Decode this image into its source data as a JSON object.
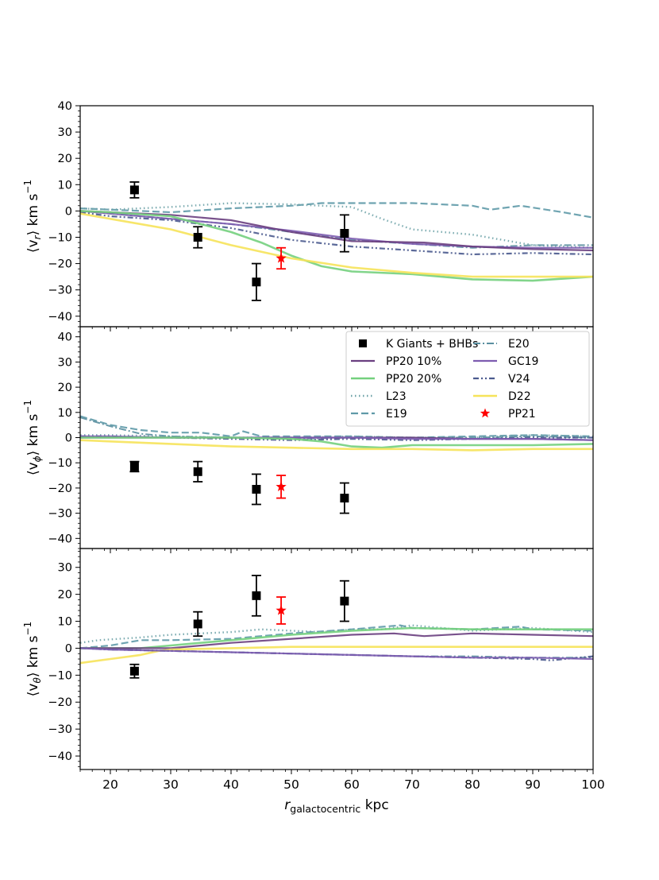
{
  "chart_data": {
    "type": "line",
    "xlabel": "r",
    "xlabel_sub": "galactocentric",
    "xlabel_unit": "kpc",
    "xlim": [
      15,
      100
    ],
    "x_ticks": [
      20,
      30,
      40,
      50,
      60,
      70,
      80,
      90,
      100
    ],
    "series_styles": {
      "PP20 10%": {
        "color": "#6a3f80",
        "dash": "",
        "width": 2.2
      },
      "PP20 20%": {
        "color": "#74d07e",
        "dash": "",
        "width": 2.6
      },
      "L23": {
        "color": "#6fa3a8",
        "dash": "1.5 3.5",
        "width": 2.4
      },
      "E19": {
        "color": "#5f9aa8",
        "dash": "9 4",
        "width": 2.2
      },
      "E20": {
        "color": "#5a8fa0",
        "dash": "9 3 2 3",
        "width": 2.0
      },
      "GC19": {
        "color": "#7d5cb0",
        "dash": "",
        "width": 2.2
      },
      "V24": {
        "color": "#4a5a8e",
        "dash": "7 3 2 3 2 3",
        "width": 2.2
      },
      "D22": {
        "color": "#f6e35a",
        "dash": "",
        "width": 2.6
      }
    },
    "legend": {
      "entries": [
        {
          "label": "K Giants + BHBs",
          "kind": "square",
          "color": "#000000"
        },
        {
          "label": "E20",
          "kind": "line",
          "series": "E20"
        },
        {
          "label": "PP20 10%",
          "kind": "line",
          "series": "PP20 10%"
        },
        {
          "label": "GC19",
          "kind": "line",
          "series": "GC19"
        },
        {
          "label": "PP20 20%",
          "kind": "line",
          "series": "PP20 20%"
        },
        {
          "label": "V24",
          "kind": "line",
          "series": "V24"
        },
        {
          "label": "L23",
          "kind": "line",
          "series": "L23"
        },
        {
          "label": "D22",
          "kind": "line",
          "series": "D22"
        },
        {
          "label": "E19",
          "kind": "line",
          "series": "E19"
        },
        {
          "label": "PP21",
          "kind": "star",
          "color": "#ff0000"
        }
      ]
    },
    "panels": [
      {
        "id": "vr",
        "ylabel": "⟨v",
        "ylabel_sub": "r",
        "ylabel_unit": "⟩ km s",
        "ylabel_sup": "−1",
        "ylim": [
          -44,
          40
        ],
        "y_ticks": [
          -40,
          -30,
          -20,
          -10,
          0,
          10,
          20,
          30,
          40
        ],
        "series": [
          {
            "name": "E19",
            "x": [
              15,
              20,
              30,
              40,
              50,
              55,
              60,
              70,
              80,
              83,
              88,
              95,
              100
            ],
            "y": [
              1,
              0.5,
              -0.5,
              1,
              2,
              3,
              3,
              3,
              2,
              0.5,
              2,
              -0.5,
              -2.5
            ]
          },
          {
            "name": "L23",
            "x": [
              15,
              20,
              30,
              40,
              50,
              55,
              60,
              65,
              70,
              80,
              90,
              100
            ],
            "y": [
              1,
              0.5,
              1.5,
              3,
              2.5,
              2,
              1.5,
              -3,
              -7,
              -9,
              -13,
              -14
            ]
          },
          {
            "name": "E20",
            "x": [
              15,
              20,
              30,
              40,
              50,
              60,
              70,
              80,
              90,
              100
            ],
            "y": [
              0,
              -1,
              -3,
              -5,
              -8,
              -11,
              -12.5,
              -14,
              -13,
              -13
            ]
          },
          {
            "name": "GC19",
            "x": [
              15,
              20,
              30,
              40,
              50,
              60,
              70,
              80,
              90,
              100
            ],
            "y": [
              0,
              -1,
              -3,
              -5,
              -7.5,
              -10.5,
              -12.5,
              -13.5,
              -14,
              -14
            ]
          },
          {
            "name": "PP20 10%",
            "x": [
              15,
              20,
              30,
              40,
              50,
              60,
              72,
              80,
              90,
              100
            ],
            "y": [
              0,
              -0.5,
              -1.5,
              -3.5,
              -8,
              -11.5,
              -12,
              -13.5,
              -14.5,
              -15
            ]
          },
          {
            "name": "V24",
            "x": [
              15,
              20,
              30,
              40,
              50,
              60,
              70,
              80,
              90,
              100
            ],
            "y": [
              -0.5,
              -2,
              -3.5,
              -6.5,
              -11,
              -13.5,
              -15,
              -16.5,
              -16,
              -16.5
            ]
          },
          {
            "name": "PP20 20%",
            "x": [
              15,
              20,
              30,
              40,
              45,
              50,
              55,
              60,
              70,
              80,
              90,
              100
            ],
            "y": [
              0,
              -0.5,
              -2,
              -8,
              -12,
              -17,
              -21,
              -23,
              -24,
              -26,
              -26.5,
              -25
            ]
          },
          {
            "name": "D22",
            "x": [
              15,
              20,
              30,
              40,
              50,
              60,
              70,
              80,
              90,
              100
            ],
            "y": [
              -1,
              -3,
              -7,
              -13,
              -18,
              -21.5,
              -23.5,
              -25,
              -25,
              -25
            ]
          }
        ],
        "observed": {
          "name": "K Giants + BHBs",
          "x": [
            24,
            34.5,
            44.2,
            58.8
          ],
          "y": [
            8,
            -10,
            -27,
            -8.5
          ],
          "err": [
            3,
            4,
            7,
            7
          ]
        },
        "pp21": {
          "x": 48.3,
          "y": -18,
          "err": 4
        }
      },
      {
        "id": "vphi",
        "ylabel": "⟨v",
        "ylabel_sub": "ϕ",
        "ylabel_unit": "⟩ km s",
        "ylabel_sup": "−1",
        "ylim": [
          -44,
          44
        ],
        "y_ticks": [
          -40,
          -30,
          -20,
          -10,
          0,
          10,
          20,
          30,
          40
        ],
        "series": [
          {
            "name": "E19",
            "x": [
              15,
              20,
              25,
              30,
              35,
              40,
              42,
              45,
              50,
              60,
              70,
              80,
              90,
              100
            ],
            "y": [
              8.5,
              5,
              3,
              2,
              2,
              0.5,
              2.5,
              0.5,
              0.5,
              0.5,
              0,
              0.5,
              1,
              0.5
            ]
          },
          {
            "name": "E20",
            "x": [
              15,
              20,
              25,
              30,
              40,
              50,
              60,
              70,
              80,
              90,
              100
            ],
            "y": [
              8,
              4.5,
              1.5,
              0.5,
              0,
              -0.5,
              0,
              0,
              0,
              0.5,
              0
            ]
          },
          {
            "name": "L23",
            "x": [
              15,
              20,
              30,
              40,
              50,
              60,
              70,
              80,
              90,
              100
            ],
            "y": [
              1,
              1,
              0.5,
              0,
              0,
              0.5,
              0,
              0,
              1,
              0.5
            ]
          },
          {
            "name": "V24",
            "x": [
              15,
              20,
              30,
              40,
              50,
              60,
              70,
              80,
              90,
              100
            ],
            "y": [
              0.5,
              0.5,
              0,
              -0.5,
              -1,
              -0.5,
              -1,
              -0.5,
              0,
              0
            ]
          },
          {
            "name": "PP20 10%",
            "x": [
              15,
              20,
              30,
              40,
              50,
              60,
              70,
              80,
              90,
              100
            ],
            "y": [
              0,
              0,
              0,
              0,
              0,
              0,
              0,
              -0.5,
              -0.5,
              -1
            ]
          },
          {
            "name": "GC19",
            "x": [
              15,
              20,
              30,
              40,
              50,
              60,
              70,
              80,
              90,
              100
            ],
            "y": [
              0.5,
              0.5,
              0,
              0,
              0,
              0,
              -0.5,
              -0.5,
              -0.5,
              -1
            ]
          },
          {
            "name": "PP20 20%",
            "x": [
              15,
              20,
              30,
              40,
              50,
              55,
              60,
              65,
              70,
              80,
              90,
              100
            ],
            "y": [
              0,
              0,
              0,
              0,
              -0.5,
              -1.5,
              -3.5,
              -4,
              -3,
              -3,
              -3,
              -2.5
            ]
          },
          {
            "name": "D22",
            "x": [
              15,
              20,
              30,
              40,
              50,
              60,
              70,
              80,
              90,
              100
            ],
            "y": [
              -1,
              -1.5,
              -2.5,
              -3.5,
              -4,
              -4.5,
              -4.5,
              -5,
              -4.5,
              -4.5
            ]
          }
        ],
        "observed": {
          "name": "K Giants + BHBs",
          "x": [
            24,
            34.5,
            44.2,
            58.8
          ],
          "y": [
            -11.5,
            -13.5,
            -20.5,
            -24
          ],
          "err": [
            2,
            4,
            6,
            6
          ]
        },
        "pp21": {
          "x": 48.3,
          "y": -19.5,
          "err": 4.5
        }
      },
      {
        "id": "vtheta",
        "ylabel": "⟨v",
        "ylabel_sub": "θ",
        "ylabel_unit": "⟩ km s",
        "ylabel_sup": "−1",
        "ylim": [
          -45,
          37
        ],
        "y_ticks": [
          -40,
          -30,
          -20,
          -10,
          0,
          10,
          20,
          30
        ],
        "series": [
          {
            "name": "L23",
            "x": [
              15,
              18,
              25,
              30,
              40,
              45,
              50,
              55,
              60,
              65,
              70,
              80,
              90,
              100
            ],
            "y": [
              2,
              3,
              4,
              5,
              6,
              7,
              6.5,
              6,
              7,
              7,
              8.5,
              6.5,
              7.5,
              6
            ]
          },
          {
            "name": "E19",
            "x": [
              15,
              20,
              25,
              30,
              40,
              50,
              60,
              68,
              70,
              80,
              88,
              90,
              100
            ],
            "y": [
              0,
              1,
              3,
              3,
              3.5,
              5.5,
              7,
              8.5,
              7.5,
              7,
              8,
              7,
              6.5
            ]
          },
          {
            "name": "PP20 20%",
            "x": [
              15,
              20,
              25,
              30,
              40,
              50,
              60,
              70,
              80,
              90,
              100
            ],
            "y": [
              0,
              0,
              0,
              1,
              3,
              5,
              6.5,
              7.5,
              7,
              7,
              7
            ]
          },
          {
            "name": "PP20 10%",
            "x": [
              15,
              20,
              30,
              40,
              50,
              60,
              67,
              72,
              80,
              90,
              100
            ],
            "y": [
              0,
              0,
              0,
              2,
              3.5,
              5,
              5.5,
              4.5,
              5.5,
              5,
              4.5
            ]
          },
          {
            "name": "D22",
            "x": [
              15,
              20,
              25,
              28,
              30,
              40,
              50,
              60,
              70,
              80,
              90,
              100
            ],
            "y": [
              -5.5,
              -4,
              -2.5,
              -1,
              -0.5,
              0,
              0.5,
              0.5,
              0.5,
              0.5,
              0.5,
              0.5
            ]
          },
          {
            "name": "E20",
            "x": [
              15,
              20,
              30,
              40,
              50,
              60,
              70,
              80,
              90,
              100
            ],
            "y": [
              0,
              -0.5,
              -1,
              -1.5,
              -2,
              -2.5,
              -3,
              -3,
              -3.5,
              -3.5
            ]
          },
          {
            "name": "V24",
            "x": [
              15,
              20,
              30,
              40,
              50,
              60,
              70,
              80,
              90,
              93,
              100
            ],
            "y": [
              0,
              -0.5,
              -1,
              -1.5,
              -2,
              -2.5,
              -3,
              -3.5,
              -4,
              -4.5,
              -3
            ]
          },
          {
            "name": "GC19",
            "x": [
              15,
              20,
              30,
              40,
              50,
              60,
              70,
              80,
              90,
              100
            ],
            "y": [
              0,
              -0.5,
              -1,
              -1.5,
              -2,
              -2.5,
              -3,
              -3.5,
              -3.5,
              -4
            ]
          }
        ],
        "observed": {
          "name": "K Giants + BHBs",
          "x": [
            24,
            34.5,
            44.2,
            58.8
          ],
          "y": [
            -8.5,
            9,
            19.5,
            17.5
          ],
          "err": [
            2.5,
            4.5,
            7.5,
            7.5
          ]
        },
        "pp21": {
          "x": 48.3,
          "y": 14,
          "err": 5
        }
      }
    ]
  }
}
